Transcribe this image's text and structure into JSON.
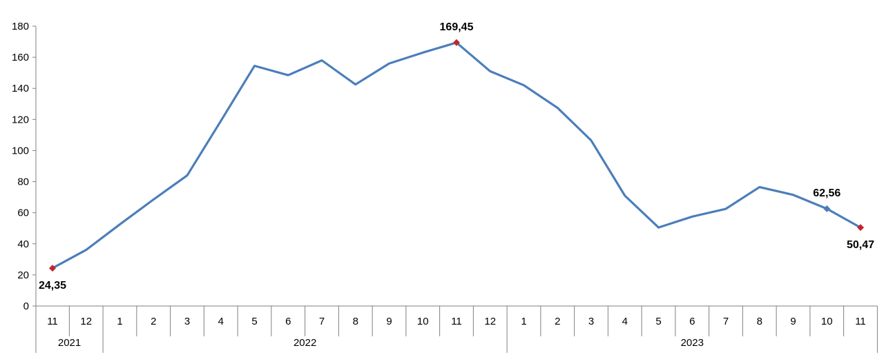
{
  "chart_data": {
    "type": "line",
    "title": "",
    "xlabel": "",
    "ylabel": "",
    "ylim": [
      0,
      180
    ],
    "yticks": [
      "0",
      "20",
      "40",
      "60",
      "80",
      "100",
      "120",
      "140",
      "160",
      "180"
    ],
    "grid": false,
    "legend": "none",
    "categories": [
      "11",
      "12",
      "1",
      "2",
      "3",
      "4",
      "5",
      "6",
      "7",
      "8",
      "9",
      "10",
      "11",
      "12",
      "1",
      "2",
      "3",
      "4",
      "5",
      "6",
      "7",
      "8",
      "9",
      "10",
      "11"
    ],
    "years": [
      {
        "label": "2021",
        "start": 0,
        "end": 1
      },
      {
        "label": "2022",
        "start": 2,
        "end": 13
      },
      {
        "label": "2023",
        "start": 14,
        "end": 24
      }
    ],
    "series": [
      {
        "color": "#4a7ebb",
        "values": [
          24.35,
          36.1,
          52.5,
          68.5,
          84.0,
          119.0,
          154.5,
          148.5,
          158.0,
          142.5,
          156.0,
          163.0,
          169.45,
          151.0,
          142.0,
          127.5,
          106.5,
          71.0,
          50.5,
          57.5,
          62.5,
          76.5,
          71.5,
          62.56,
          50.47
        ]
      }
    ],
    "markers": [
      {
        "index": 0,
        "shape": "diamond",
        "color": "#c0272d",
        "label": "24,35",
        "label_pos": "below"
      },
      {
        "index": 12,
        "shape": "diamond",
        "color": "#c0272d",
        "label": "169,45",
        "label_pos": "above"
      },
      {
        "index": 23,
        "shape": "diamond",
        "color": "#4a7ebb",
        "label": "62,56",
        "label_pos": "above"
      },
      {
        "index": 24,
        "shape": "diamond",
        "color": "#c0272d",
        "label": "50,47",
        "label_pos": "below"
      }
    ]
  }
}
